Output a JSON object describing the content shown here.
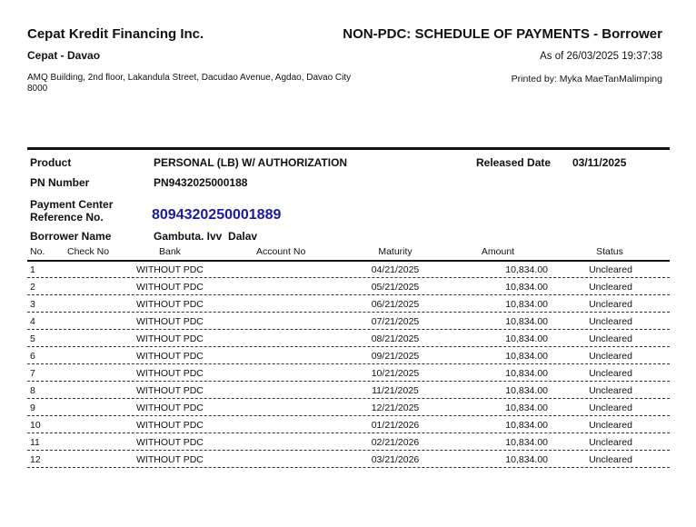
{
  "header": {
    "company": "Cepat Kredit Financing Inc.",
    "branch": "Cepat - Davao",
    "address_line1": "AMQ Building, 2nd floor, Lakandula Street, Dacudao Avenue, Agdao, Davao City",
    "address_line2": "8000",
    "report_title": "NON-PDC: SCHEDULE OF PAYMENTS - Borrower",
    "as_of": "As of 26/03/2025 19:37:38",
    "printed_by": "Printed by: Myka MaeTanMalimping"
  },
  "info": {
    "product_label": "Product",
    "product": "PERSONAL (LB) W/ AUTHORIZATION",
    "released_label": "Released Date",
    "released": "03/11/2025",
    "pn_label": "PN Number",
    "pn": "PN9432025000188",
    "ref_label1": "Payment Center",
    "ref_label2": "Reference No.",
    "ref": "8094320250001889",
    "ref_color": "#1a1aa0",
    "borrower_label": "Borrower Name",
    "borrower": "Gambuta. Ivv  Dalav"
  },
  "table": {
    "columns": [
      "No.",
      "Check No",
      "Bank",
      "Account No",
      "Maturity",
      "Amount",
      "Status"
    ],
    "rows": [
      [
        "1",
        "",
        "WITHOUT PDC",
        "",
        "04/21/2025",
        "10,834.00",
        "Uncleared"
      ],
      [
        "2",
        "",
        "WITHOUT PDC",
        "",
        "05/21/2025",
        "10,834.00",
        "Uncleared"
      ],
      [
        "3",
        "",
        "WITHOUT PDC",
        "",
        "06/21/2025",
        "10,834.00",
        "Uncleared"
      ],
      [
        "4",
        "",
        "WITHOUT PDC",
        "",
        "07/21/2025",
        "10,834.00",
        "Uncleared"
      ],
      [
        "5",
        "",
        "WITHOUT PDC",
        "",
        "08/21/2025",
        "10,834.00",
        "Uncleared"
      ],
      [
        "6",
        "",
        "WITHOUT PDC",
        "",
        "09/21/2025",
        "10,834.00",
        "Uncleared"
      ],
      [
        "7",
        "",
        "WITHOUT PDC",
        "",
        "10/21/2025",
        "10,834.00",
        "Uncleared"
      ],
      [
        "8",
        "",
        "WITHOUT PDC",
        "",
        "11/21/2025",
        "10,834.00",
        "Uncleared"
      ],
      [
        "9",
        "",
        "WITHOUT PDC",
        "",
        "12/21/2025",
        "10,834.00",
        "Uncleared"
      ],
      [
        "10",
        "",
        "WITHOUT PDC",
        "",
        "01/21/2026",
        "10,834.00",
        "Uncleared"
      ],
      [
        "11",
        "",
        "WITHOUT PDC",
        "",
        "02/21/2026",
        "10,834.00",
        "Uncleared"
      ],
      [
        "12",
        "",
        "WITHOUT PDC",
        "",
        "03/21/2026",
        "10,834.00",
        "Uncleared"
      ]
    ]
  }
}
